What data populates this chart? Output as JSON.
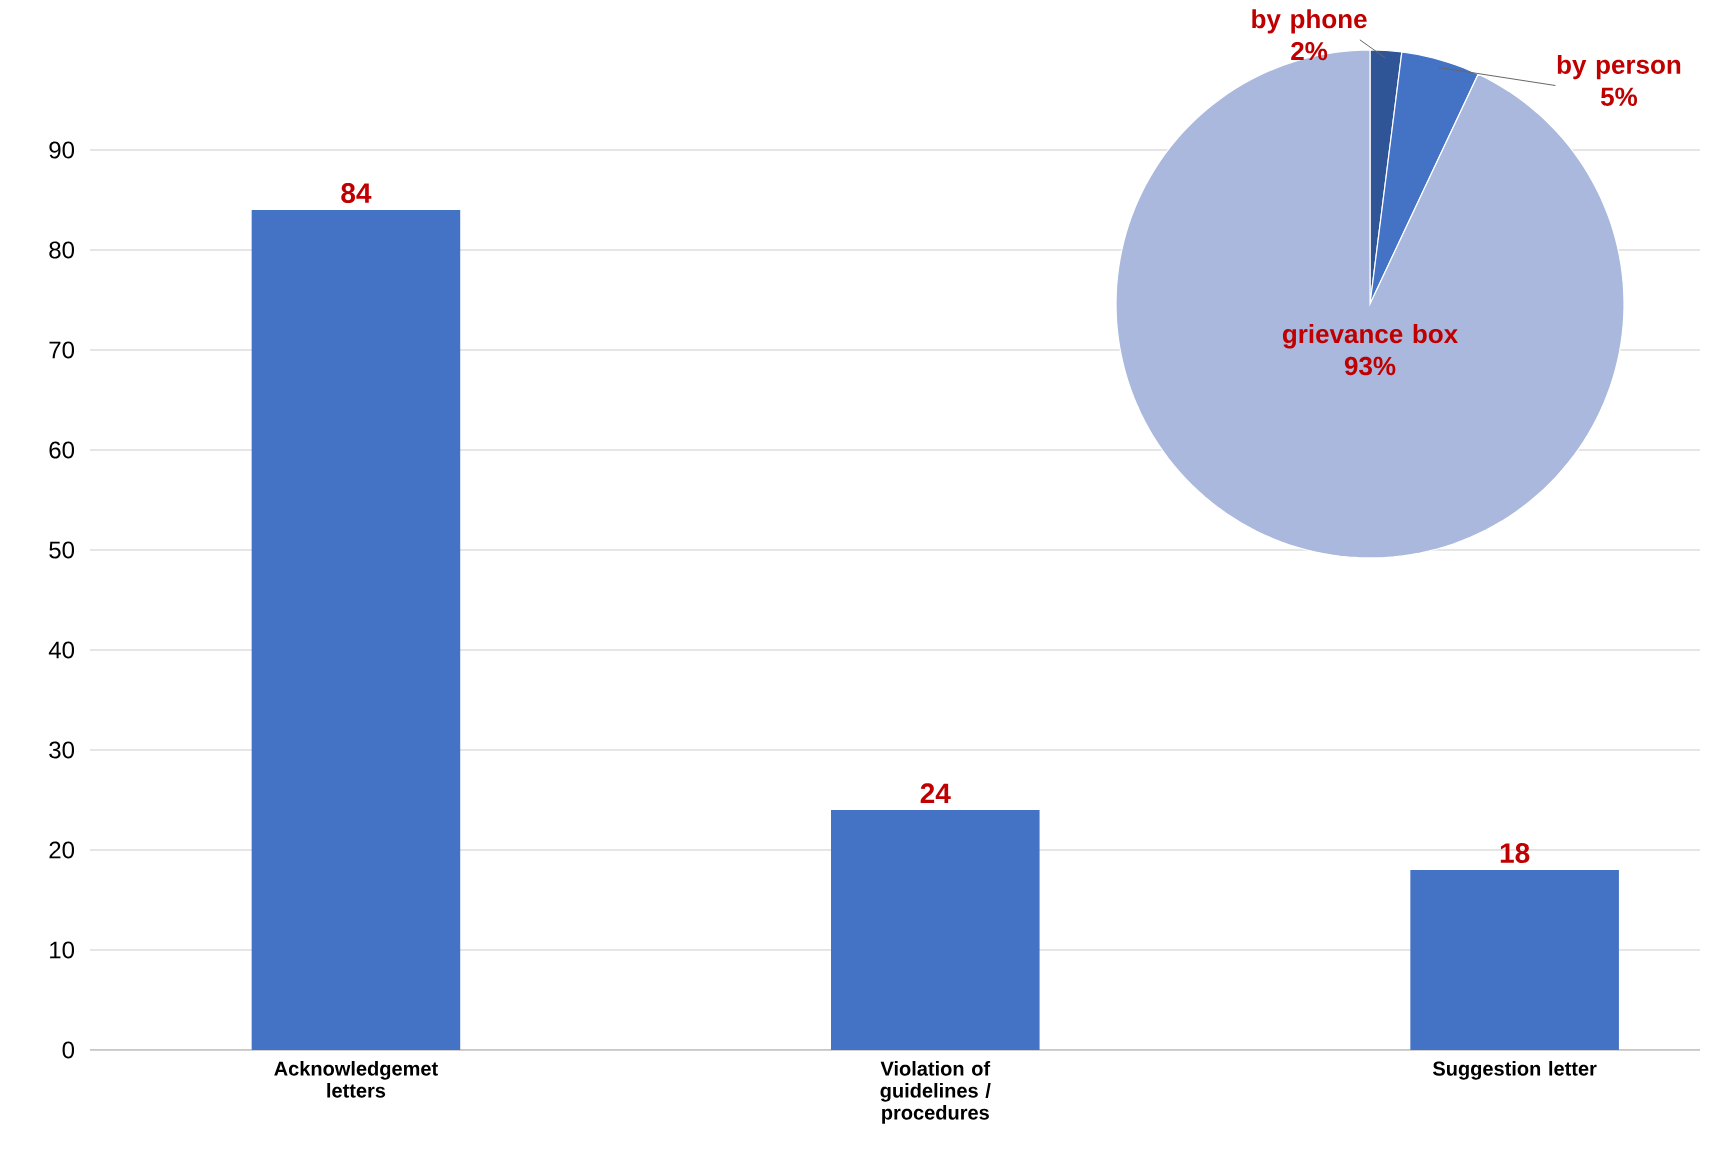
{
  "chart_data": [
    {
      "type": "bar",
      "categories": [
        "Acknowledgemet letters",
        "Violation of guidelines / procedures",
        "Suggestion letter"
      ],
      "values": [
        84,
        24,
        18
      ],
      "color": "#4472c4",
      "ylim": [
        0,
        90
      ],
      "yticks": [
        0,
        10,
        20,
        30,
        40,
        50,
        60,
        70,
        80,
        90
      ],
      "grid": "y",
      "data_labels": true
    },
    {
      "type": "pie",
      "categories": [
        "by phone",
        "by person",
        "grievance box"
      ],
      "values": [
        2,
        5,
        93
      ],
      "colors": [
        "#2f5597",
        "#4472c4",
        "#a9b8dc"
      ],
      "value_labels": [
        "2%",
        "5%",
        "93%"
      ]
    }
  ]
}
